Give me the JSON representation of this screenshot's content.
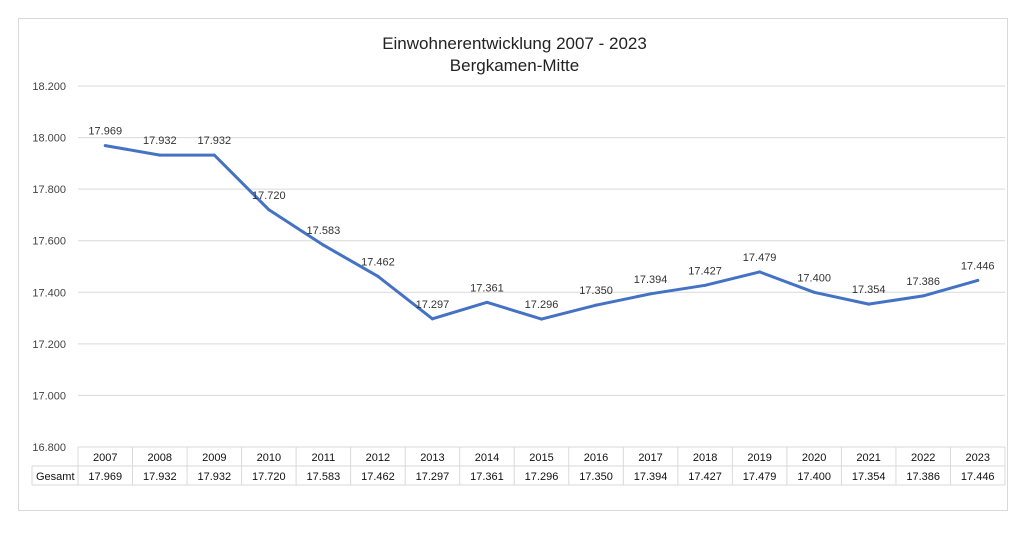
{
  "chart_data": {
    "type": "line",
    "title": "Einwohnerentwicklung 2007 - 2023",
    "subtitle": "Bergkamen-Mitte",
    "categories": [
      "2007",
      "2008",
      "2009",
      "2010",
      "2011",
      "2012",
      "2013",
      "2014",
      "2015",
      "2016",
      "2017",
      "2018",
      "2019",
      "2020",
      "2021",
      "2022",
      "2023"
    ],
    "series": [
      {
        "name": "Gesamt",
        "values": [
          17969,
          17932,
          17932,
          17720,
          17583,
          17462,
          17297,
          17361,
          17296,
          17350,
          17394,
          17427,
          17479,
          17400,
          17354,
          17386,
          17446
        ],
        "labels": [
          "17.969",
          "17.932",
          "17.932",
          "17.720",
          "17.583",
          "17.462",
          "17.297",
          "17.361",
          "17.296",
          "17.350",
          "17.394",
          "17.427",
          "17.479",
          "17.400",
          "17.354",
          "17.386",
          "17.446"
        ],
        "color": "#4472C4"
      }
    ],
    "ylim": [
      16800,
      18200
    ],
    "yticks": [
      16800,
      17000,
      17200,
      17400,
      17600,
      17800,
      18000,
      18200
    ],
    "ytick_labels": [
      "16.800",
      "17.000",
      "17.200",
      "17.400",
      "17.600",
      "17.800",
      "18.000",
      "18.200"
    ],
    "grid": true,
    "legend": "data-table-bottom",
    "gridline_color": "#d9d9d9",
    "data_table_label": "Gesamt"
  }
}
